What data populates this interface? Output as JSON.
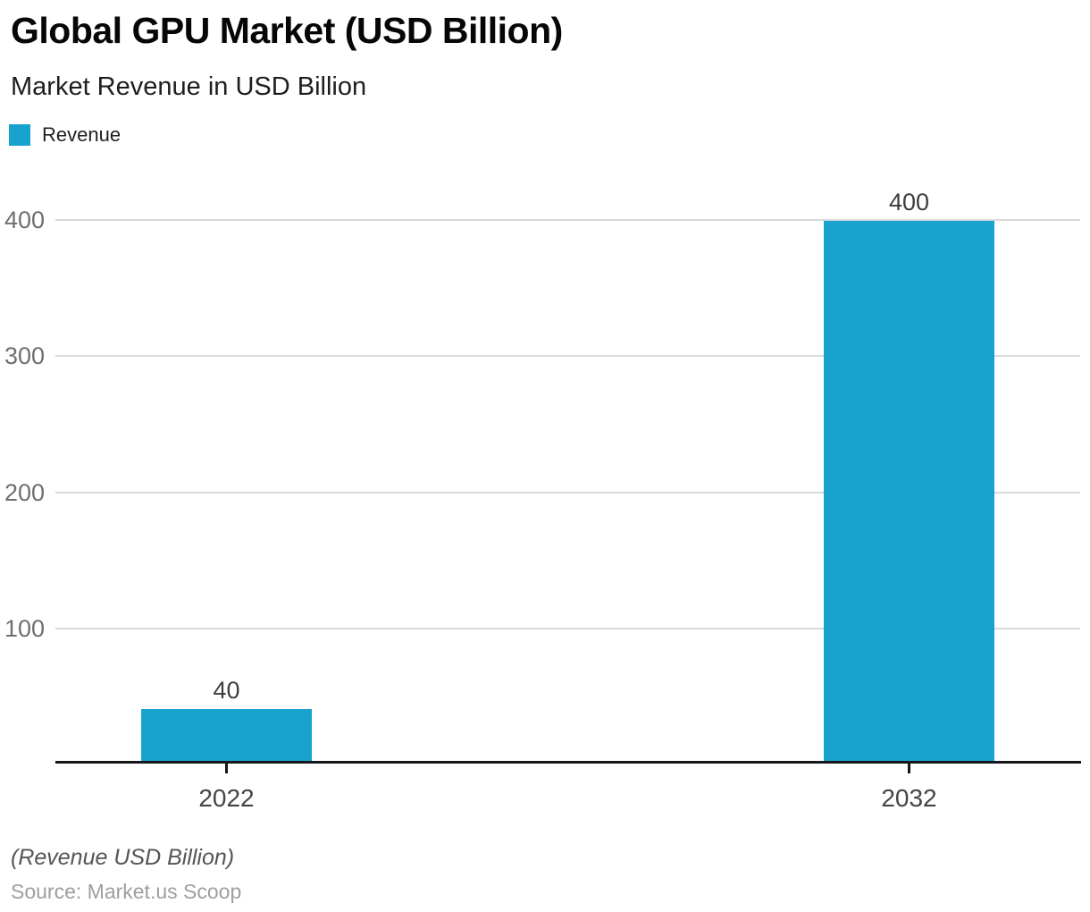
{
  "header": {
    "title": "Global GPU Market (USD Billion)",
    "subtitle": "Market Revenue in USD Billion"
  },
  "legend": {
    "label": "Revenue"
  },
  "chart_data": {
    "type": "bar",
    "categories": [
      "2022",
      "2032"
    ],
    "values": [
      40,
      400
    ],
    "series": [
      {
        "name": "Revenue",
        "values": [
          40,
          400
        ]
      }
    ],
    "title": "Global GPU Market (USD Billion)",
    "subtitle": "Market Revenue in USD Billion",
    "xlabel": "",
    "ylabel": "",
    "ylim": [
      0,
      400
    ],
    "yticks": [
      100,
      200,
      300,
      400
    ],
    "grid": "horizontal",
    "legend_position": "top-left",
    "data_labels": [
      40,
      400
    ]
  },
  "footer": {
    "note": "(Revenue USD Billion)",
    "source": "Source: Market.us Scoop"
  },
  "colors": {
    "accent": "#18a2ce",
    "gridline": "#d9d9d9",
    "axis_line": "#14171b"
  }
}
